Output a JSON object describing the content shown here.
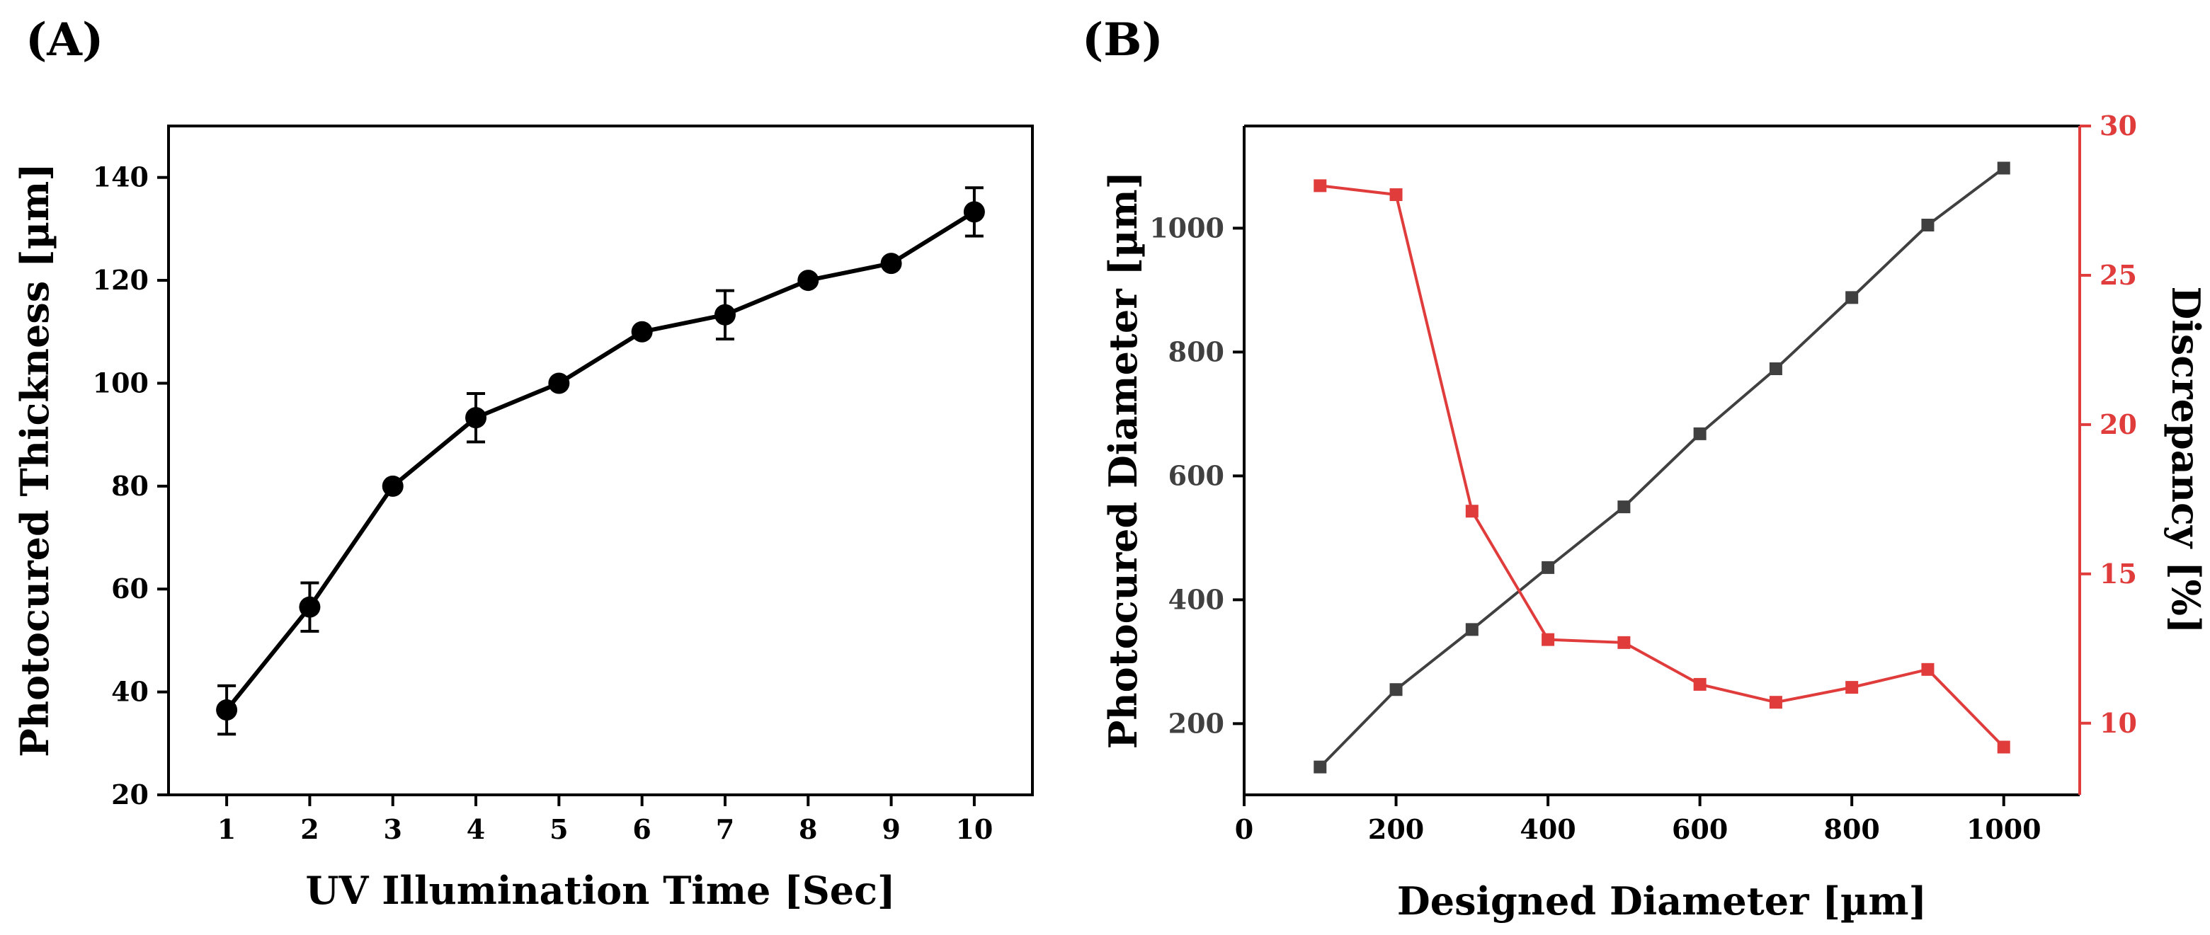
{
  "chart_data": [
    {
      "panel_label": "(A)",
      "type": "line",
      "x": [
        1,
        2,
        3,
        4,
        5,
        6,
        7,
        8,
        9,
        10
      ],
      "series": [
        {
          "name": "Photocured Thickness",
          "values": [
            36.5,
            56.5,
            80,
            93.3,
            100,
            110,
            113.3,
            120,
            123.3,
            133.3
          ],
          "errors": [
            4.7,
            4.7,
            0,
            4.7,
            0,
            0,
            4.7,
            0,
            0,
            4.7
          ],
          "color": "#000000",
          "marker": "circle"
        }
      ],
      "xlabel": "UV Illumination Time [Sec]",
      "ylabel": "Photocured Thickness [µm]",
      "xticks": [
        "1",
        "2",
        "3",
        "4",
        "5",
        "6",
        "7",
        "8",
        "9",
        "10"
      ],
      "yticks": [
        "20",
        "40",
        "60",
        "80",
        "100",
        "120",
        "140"
      ],
      "xlim": [
        0.3,
        10.7
      ],
      "ylim": [
        20,
        150
      ],
      "grid": false
    },
    {
      "panel_label": "(B)",
      "type": "line",
      "x": [
        100,
        200,
        300,
        400,
        500,
        600,
        700,
        800,
        900,
        1000
      ],
      "series": [
        {
          "name": "Photocured Diameter",
          "axis": "left",
          "values": [
            130,
            255,
            352,
            452,
            550,
            668,
            773,
            888,
            1005,
            1097
          ],
          "color": "#404040",
          "marker": "square"
        },
        {
          "name": "Discrepancy",
          "axis": "right",
          "values": [
            28.0,
            27.7,
            17.1,
            12.8,
            12.7,
            11.3,
            10.7,
            11.2,
            11.8,
            9.2
          ],
          "color": "#e03c3c",
          "marker": "square"
        }
      ],
      "xlabel": "Designed Diameter [µm]",
      "ylabel": "Photocured Diameter [µm]",
      "ylabel_right": "Discrepancy [%]",
      "xticks": [
        "0",
        "200",
        "400",
        "600",
        "800",
        "1000"
      ],
      "yticks": [
        "200",
        "400",
        "600",
        "800",
        "1000"
      ],
      "yticks_right": [
        "10",
        "15",
        "20",
        "25",
        "30"
      ],
      "xlim": [
        0,
        1100
      ],
      "ylim": [
        85,
        1165
      ],
      "ylim_right": [
        7.6,
        30
      ],
      "grid": false
    }
  ]
}
